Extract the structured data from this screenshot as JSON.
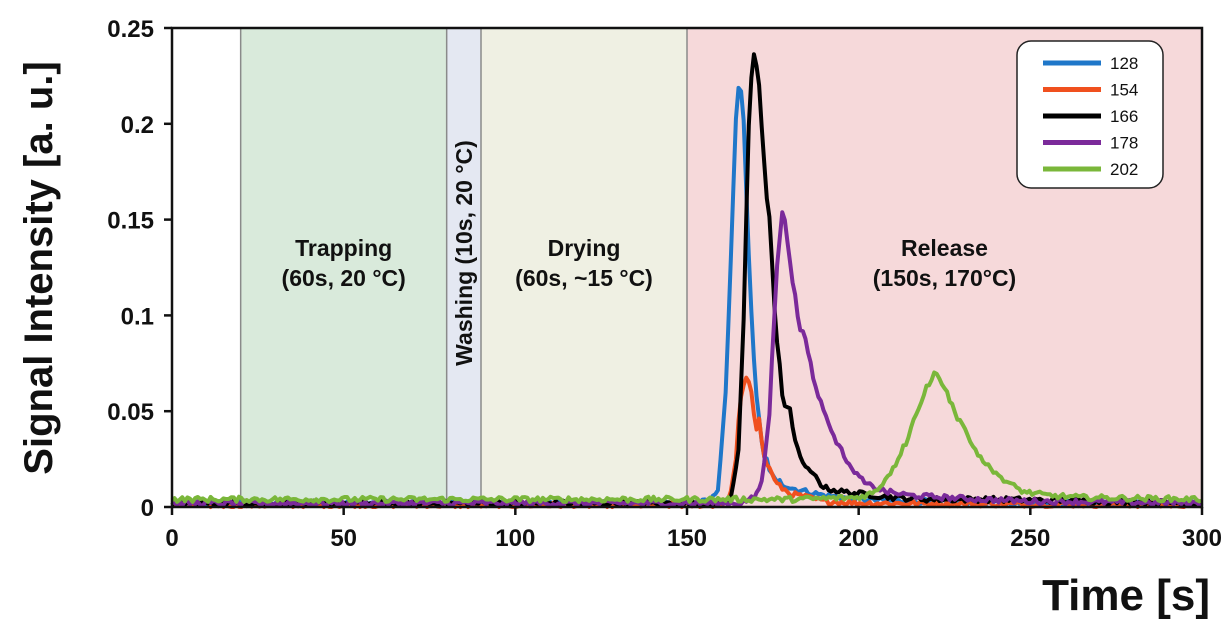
{
  "chart_data": {
    "type": "line",
    "title": "",
    "xlabel": "Time [s]",
    "ylabel": "Signal Intensity [a. u.]",
    "xlim": [
      0,
      300
    ],
    "ylim": [
      0,
      0.25
    ],
    "x_ticks": [
      {
        "value": 0,
        "label": "0"
      },
      {
        "value": 50,
        "label": "50"
      },
      {
        "value": 100,
        "label": "100"
      },
      {
        "value": 150,
        "label": "150"
      },
      {
        "value": 200,
        "label": "200"
      },
      {
        "value": 250,
        "label": "250"
      },
      {
        "value": 300,
        "label": "300"
      }
    ],
    "y_ticks": [
      {
        "value": 0,
        "label": "0"
      },
      {
        "value": 0.05,
        "label": "0.05"
      },
      {
        "value": 0.1,
        "label": "0.1"
      },
      {
        "value": 0.15,
        "label": "0.15"
      },
      {
        "value": 0.2,
        "label": "0.2"
      },
      {
        "value": 0.25,
        "label": "0.25"
      }
    ],
    "grid": false,
    "legend_position": "top-right",
    "phases": [
      {
        "start": 20,
        "end": 80,
        "color": "#d9eadb",
        "lines": [
          "Trapping",
          "(60s, 20 °C)"
        ],
        "orientation": "horizontal"
      },
      {
        "start": 80,
        "end": 90,
        "color": "#e4e8f2",
        "lines": [
          "Washing (10s, 20 °C)"
        ],
        "orientation": "vertical"
      },
      {
        "start": 90,
        "end": 150,
        "color": "#eff0e3",
        "lines": [
          "Drying",
          "(60s, ~15 °C)"
        ],
        "orientation": "horizontal"
      },
      {
        "start": 150,
        "end": 300,
        "color": "#f6d9da",
        "lines": [
          "Release",
          "(150s, 170°C)"
        ],
        "orientation": "horizontal"
      }
    ],
    "series": [
      {
        "name": "128",
        "color": "#1f77c9",
        "baseline": 0.002,
        "points": [
          [
            0,
            0.002
          ],
          [
            150,
            0.002
          ],
          [
            157,
            0.003
          ],
          [
            159,
            0.01
          ],
          [
            161,
            0.05
          ],
          [
            163,
            0.14
          ],
          [
            164.5,
            0.21
          ],
          [
            165.5,
            0.224
          ],
          [
            166.5,
            0.2
          ],
          [
            168,
            0.13
          ],
          [
            170,
            0.06
          ],
          [
            172,
            0.03
          ],
          [
            175,
            0.015
          ],
          [
            180,
            0.01
          ],
          [
            190,
            0.006
          ],
          [
            200,
            0.004
          ],
          [
            215,
            0.003
          ],
          [
            230,
            0.003
          ],
          [
            240,
            0.002
          ],
          [
            300,
            0.002
          ]
        ]
      },
      {
        "name": "154",
        "color": "#f0501e",
        "baseline": 0.001,
        "points": [
          [
            0,
            0.001
          ],
          [
            158,
            0.001
          ],
          [
            162,
            0.003
          ],
          [
            164,
            0.02
          ],
          [
            165.5,
            0.055
          ],
          [
            167,
            0.069
          ],
          [
            168.5,
            0.064
          ],
          [
            170,
            0.038
          ],
          [
            171,
            0.045
          ],
          [
            172,
            0.03
          ],
          [
            174,
            0.02
          ],
          [
            176,
            0.012
          ],
          [
            180,
            0.007
          ],
          [
            185,
            0.005
          ],
          [
            190,
            0.003
          ],
          [
            200,
            0.002
          ],
          [
            300,
            0.001
          ]
        ]
      },
      {
        "name": "166",
        "color": "#000000",
        "baseline": 0.002,
        "points": [
          [
            0,
            0.002
          ],
          [
            160,
            0.002
          ],
          [
            163,
            0.005
          ],
          [
            165,
            0.03
          ],
          [
            166.5,
            0.1
          ],
          [
            168,
            0.2
          ],
          [
            169.5,
            0.236
          ],
          [
            171,
            0.22
          ],
          [
            172,
            0.19
          ],
          [
            174,
            0.15
          ],
          [
            176,
            0.09
          ],
          [
            178,
            0.055
          ],
          [
            180,
            0.05
          ],
          [
            182,
            0.03
          ],
          [
            185,
            0.02
          ],
          [
            190,
            0.01
          ],
          [
            195,
            0.008
          ],
          [
            200,
            0.007
          ],
          [
            210,
            0.005
          ],
          [
            220,
            0.004
          ],
          [
            240,
            0.004
          ],
          [
            300,
            0.002
          ]
        ]
      },
      {
        "name": "178",
        "color": "#7b2a9a",
        "baseline": 0.002,
        "points": [
          [
            0,
            0.002
          ],
          [
            165,
            0.002
          ],
          [
            170,
            0.005
          ],
          [
            172,
            0.015
          ],
          [
            174,
            0.05
          ],
          [
            176,
            0.12
          ],
          [
            177.5,
            0.157
          ],
          [
            179,
            0.14
          ],
          [
            181,
            0.115
          ],
          [
            183,
            0.095
          ],
          [
            185,
            0.085
          ],
          [
            187,
            0.065
          ],
          [
            189,
            0.055
          ],
          [
            191,
            0.045
          ],
          [
            193,
            0.035
          ],
          [
            195,
            0.03
          ],
          [
            198,
            0.02
          ],
          [
            202,
            0.012
          ],
          [
            208,
            0.008
          ],
          [
            215,
            0.006
          ],
          [
            225,
            0.005
          ],
          [
            235,
            0.004
          ],
          [
            250,
            0.003
          ],
          [
            300,
            0.002
          ]
        ]
      },
      {
        "name": "202",
        "color": "#7ab73a",
        "baseline": 0.004,
        "points": [
          [
            0,
            0.004
          ],
          [
            180,
            0.004
          ],
          [
            200,
            0.005
          ],
          [
            205,
            0.008
          ],
          [
            210,
            0.02
          ],
          [
            214,
            0.035
          ],
          [
            217,
            0.05
          ],
          [
            220,
            0.062
          ],
          [
            222,
            0.07
          ],
          [
            224,
            0.066
          ],
          [
            226,
            0.058
          ],
          [
            228,
            0.048
          ],
          [
            231,
            0.04
          ],
          [
            234,
            0.03
          ],
          [
            237,
            0.023
          ],
          [
            240,
            0.018
          ],
          [
            244,
            0.012
          ],
          [
            248,
            0.008
          ],
          [
            255,
            0.006
          ],
          [
            265,
            0.005
          ],
          [
            300,
            0.004
          ]
        ]
      }
    ]
  }
}
